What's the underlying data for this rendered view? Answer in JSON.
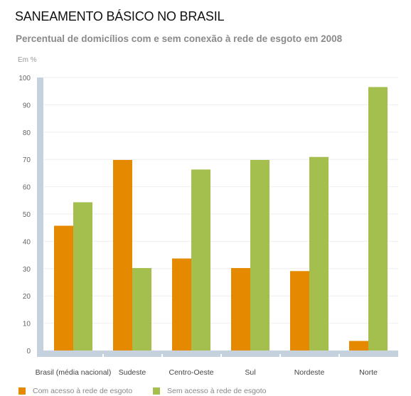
{
  "header": {
    "title": "SANEAMENTO BÁSICO NO BRASIL",
    "subtitle": "Percentual de domicílios com e sem conexão à rede de esgoto em 2008",
    "unit": "Em %"
  },
  "colors": {
    "com_acesso": "#e58a00",
    "sem_acesso": "#a4bf4d",
    "axis": "#c5d2de",
    "grid": "#eeeeee"
  },
  "chart_data": {
    "type": "bar",
    "title": "SANEAMENTO BÁSICO NO BRASIL",
    "subtitle": "Percentual de domicílios com e sem conexão à rede de esgoto em 2008",
    "ylabel": "Em %",
    "xlabel": "",
    "ylim": [
      0,
      100
    ],
    "yticks": [
      0,
      10,
      20,
      30,
      40,
      50,
      60,
      70,
      80,
      90,
      100
    ],
    "grid": true,
    "legend_position": "bottom",
    "categories": [
      "Brasil (média nacional)",
      "Sudeste",
      "Centro-Oeste",
      "Sul",
      "Nordeste",
      "Norte"
    ],
    "series": [
      {
        "name": "Com acesso à rede de esgoto",
        "values": [
          45.7,
          69.8,
          33.7,
          30.2,
          29.1,
          3.5
        ]
      },
      {
        "name": "Sem acesso à rede de esgoto",
        "values": [
          54.3,
          30.2,
          66.3,
          69.8,
          70.9,
          96.5
        ]
      }
    ]
  }
}
